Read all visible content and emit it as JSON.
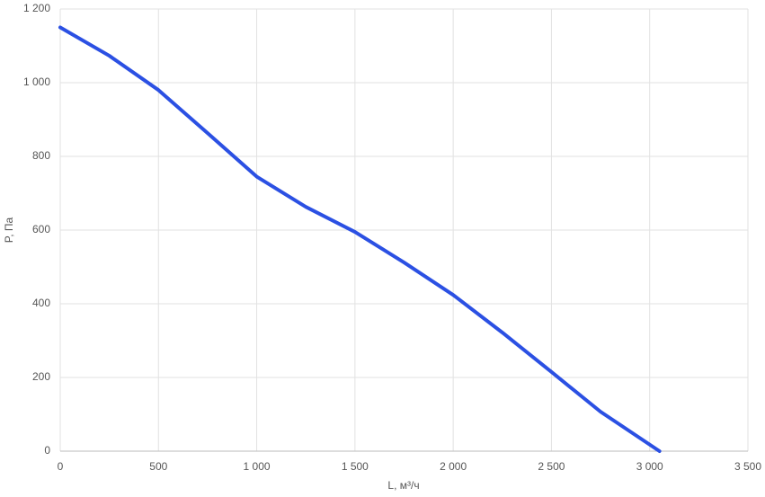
{
  "chart_data": {
    "type": "line",
    "x_label": "L, м³/ч",
    "y_label": "P, Па",
    "x": [
      0,
      250,
      500,
      750,
      1000,
      1250,
      1500,
      1750,
      2000,
      2250,
      2500,
      2750,
      3050
    ],
    "series": [
      {
        "color": "#2b50e3",
        "values": [
          1150,
          1073,
          980,
          863,
          745,
          663,
          595,
          512,
          424,
          322,
          215,
          107,
          0
        ]
      }
    ],
    "xlim": [
      0,
      3500
    ],
    "xticks": [
      0,
      500,
      {
        "value": 1000,
        "label": "1 000"
      },
      {
        "value": 1500,
        "label": "1 500"
      },
      {
        "value": 2000,
        "label": "2 000"
      },
      {
        "value": 2500,
        "label": "2 500"
      },
      {
        "value": 3000,
        "label": "3 000"
      },
      {
        "value": 3500,
        "label": "3 500"
      }
    ],
    "ylim": [
      0,
      1200
    ],
    "yticks": [
      0,
      200,
      400,
      600,
      800,
      {
        "value": 1000,
        "label": "1 000"
      },
      {
        "value": 1200,
        "label": "1 200"
      }
    ],
    "grid": true
  }
}
